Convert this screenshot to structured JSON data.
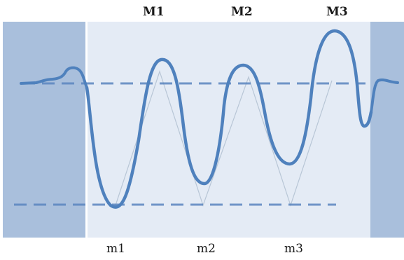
{
  "labels": {
    "maxima": [
      "M1",
      "M2",
      "M3"
    ],
    "minima": [
      "m1",
      "m2",
      "m3"
    ]
  },
  "colors": {
    "side_band": "#a9bfdc",
    "center_band": "#e4ebf5",
    "curve": "#4f81bd",
    "guide": "#b8c6d6",
    "dashed": "#5b86bf"
  }
}
